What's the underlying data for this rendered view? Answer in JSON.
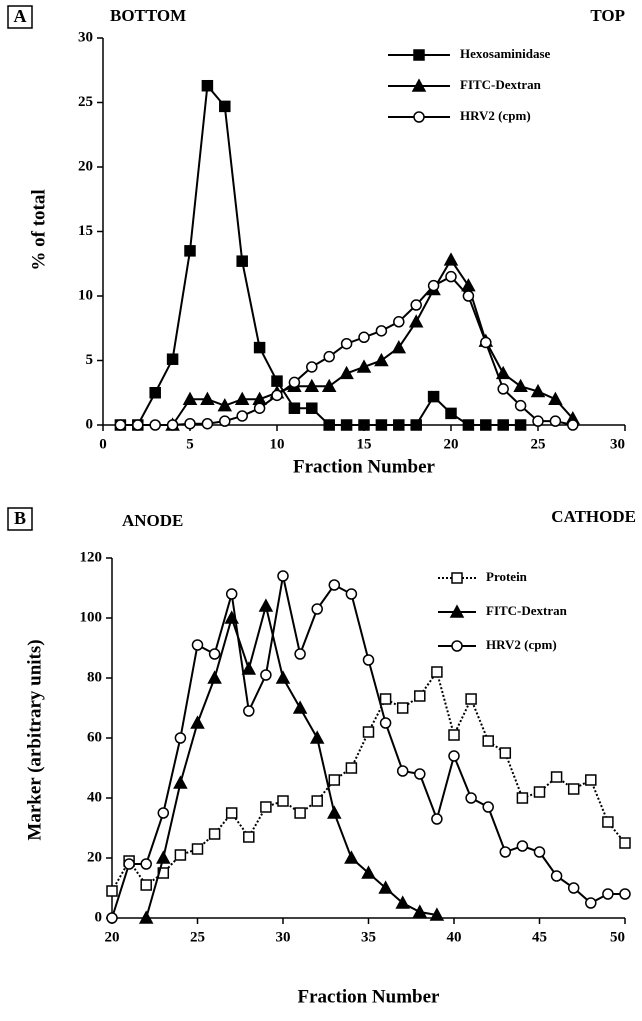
{
  "chart_data": [
    {
      "type": "line",
      "panel": "A",
      "annotations": [
        "BOTTOM",
        "TOP"
      ],
      "x_label": "Fraction Number",
      "y_label": "% of total",
      "xlim": [
        0,
        30
      ],
      "xticks": [
        0,
        5,
        10,
        15,
        20,
        25,
        30
      ],
      "ylim": [
        0,
        30
      ],
      "yticks": [
        0,
        5,
        10,
        15,
        20,
        25,
        30
      ],
      "x": [
        1,
        2,
        3,
        4,
        5,
        6,
        7,
        8,
        9,
        10,
        11,
        12,
        13,
        14,
        15,
        16,
        17,
        18,
        19,
        20,
        21,
        22,
        23,
        24,
        25,
        26,
        27
      ],
      "series": [
        {
          "name": "Hexosaminidase",
          "color": "#000000",
          "marker": "square",
          "filled": true,
          "values": [
            0,
            0,
            2.5,
            5.1,
            13.5,
            26.3,
            24.7,
            12.7,
            6,
            3.4,
            1.3,
            1.3,
            0,
            0,
            0,
            0,
            0,
            0,
            2.2,
            0.9,
            0,
            0,
            0,
            0,
            null,
            null,
            null
          ]
        },
        {
          "name": "FITC-Dextran",
          "color": "#000000",
          "marker": "triangle",
          "filled": true,
          "values": [
            null,
            null,
            null,
            0,
            2,
            2,
            1.5,
            2,
            2,
            2.5,
            3,
            3,
            3,
            4,
            4.5,
            5,
            6,
            8,
            10.5,
            12.8,
            10.8,
            6.5,
            4,
            3,
            2.6,
            2,
            0.5
          ]
        },
        {
          "name": "HRV2 (cpm)",
          "color": "#000000",
          "marker": "circle",
          "filled": false,
          "values": [
            0,
            0,
            0,
            0,
            0.1,
            0.1,
            0.3,
            0.7,
            1.3,
            2.3,
            3.3,
            4.5,
            5.3,
            6.3,
            6.8,
            7.3,
            8,
            9.3,
            10.8,
            11.5,
            10,
            6.4,
            2.8,
            1.5,
            0.3,
            0.3,
            0
          ]
        }
      ]
    },
    {
      "type": "line",
      "panel": "B",
      "annotations": [
        "ANODE",
        "CATHODE"
      ],
      "x_label": "Fraction Number",
      "y_label": "Marker (arbitrary units)",
      "xlim": [
        20,
        50
      ],
      "xticks": [
        20,
        25,
        30,
        35,
        40,
        45,
        50
      ],
      "ylim": [
        0,
        120
      ],
      "yticks": [
        0,
        20,
        40,
        60,
        80,
        100,
        120
      ],
      "x": [
        20,
        21,
        22,
        23,
        24,
        25,
        26,
        27,
        28,
        29,
        30,
        31,
        32,
        33,
        34,
        35,
        36,
        37,
        38,
        39,
        40,
        41,
        42,
        43,
        44,
        45,
        46,
        47,
        48,
        49,
        50
      ],
      "series": [
        {
          "name": "Protein",
          "color": "#000000",
          "marker": "square",
          "filled": false,
          "dash": "dotted",
          "values": [
            9,
            19,
            11,
            15,
            21,
            23,
            28,
            35,
            27,
            37,
            39,
            35,
            39,
            46,
            50,
            62,
            73,
            70,
            74,
            82,
            61,
            73,
            59,
            55,
            40,
            42,
            47,
            43,
            46,
            32,
            25
          ]
        },
        {
          "name": "FITC-Dextran",
          "color": "#000000",
          "marker": "triangle",
          "filled": true,
          "values": [
            null,
            null,
            0,
            20,
            45,
            65,
            80,
            100,
            83,
            104,
            80,
            70,
            60,
            35,
            20,
            15,
            10,
            5,
            2,
            1,
            null,
            null,
            null,
            null,
            null,
            null,
            null,
            null,
            null,
            null,
            null
          ]
        },
        {
          "name": "HRV2 (cpm)",
          "color": "#000000",
          "marker": "circle",
          "filled": false,
          "values": [
            0,
            18,
            18,
            35,
            60,
            91,
            88,
            108,
            69,
            81,
            114,
            88,
            103,
            111,
            108,
            86,
            65,
            49,
            48,
            33,
            54,
            40,
            37,
            22,
            24,
            22,
            14,
            10,
            5,
            8,
            8
          ]
        }
      ]
    }
  ]
}
